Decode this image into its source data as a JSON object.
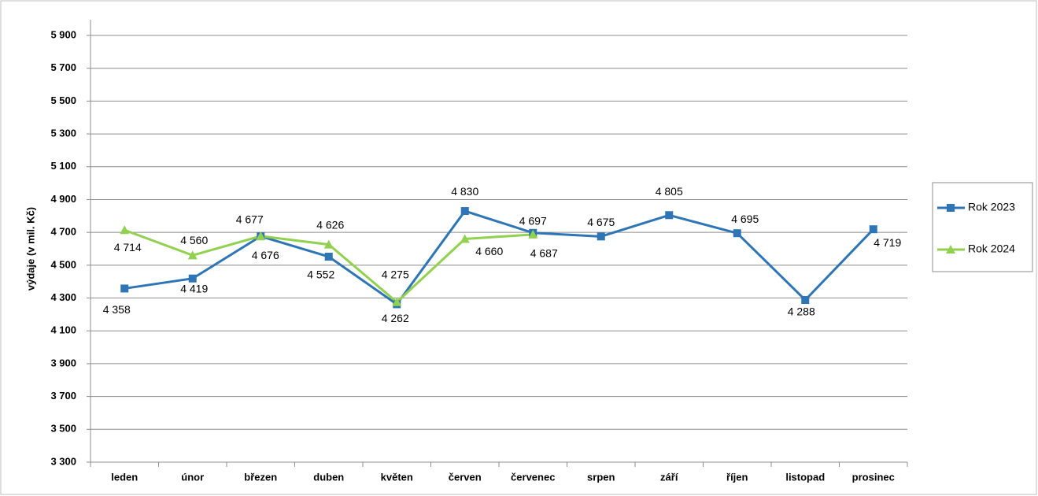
{
  "chart_data": {
    "type": "line",
    "y_label": "výdaje (v mil. Kč)",
    "categories": [
      "leden",
      "únor",
      "březen",
      "duben",
      "květen",
      "červen",
      "červenec",
      "srpen",
      "září",
      "říjen",
      "listopad",
      "prosinec"
    ],
    "series": [
      {
        "name": "Rok 2023",
        "color": "#2e75b6",
        "marker": "square",
        "values": [
          4358,
          4419,
          4676,
          4552,
          4262,
          4830,
          4697,
          4675,
          4805,
          4695,
          4288,
          4719
        ],
        "value_labels": [
          "4 358",
          "4 419",
          "4 676",
          "4 552",
          "4 262",
          "4 830",
          "4 697",
          "4 675",
          "4 805",
          "4 695",
          "4 288",
          "4 719"
        ]
      },
      {
        "name": "Rok 2024",
        "color": "#92d050",
        "marker": "triangle",
        "values": [
          4714,
          4560,
          4677,
          4626,
          4275,
          4660,
          4687,
          null,
          null,
          null,
          null,
          null
        ],
        "value_labels": [
          "4 714",
          "4 560",
          "4 677",
          "4 626",
          "4 275",
          "4 660",
          "4 687",
          null,
          null,
          null,
          null,
          null
        ]
      }
    ],
    "ylim": [
      3300,
      5900
    ],
    "yticks": [
      {
        "value": 3300,
        "label": "3 300"
      },
      {
        "value": 3500,
        "label": "3 500"
      },
      {
        "value": 3700,
        "label": "3 700"
      },
      {
        "value": 3900,
        "label": "3 900"
      },
      {
        "value": 4100,
        "label": "4 100"
      },
      {
        "value": 4300,
        "label": "4 300"
      },
      {
        "value": 4500,
        "label": "4 500"
      },
      {
        "value": 4700,
        "label": "4 700"
      },
      {
        "value": 4900,
        "label": "4 900"
      },
      {
        "value": 5100,
        "label": "5 100"
      },
      {
        "value": 5300,
        "label": "5 300"
      },
      {
        "value": 5500,
        "label": "5 500"
      },
      {
        "value": 5700,
        "label": "5 700"
      },
      {
        "value": 5900,
        "label": "5 900"
      }
    ],
    "grid": true,
    "legend": "right"
  }
}
